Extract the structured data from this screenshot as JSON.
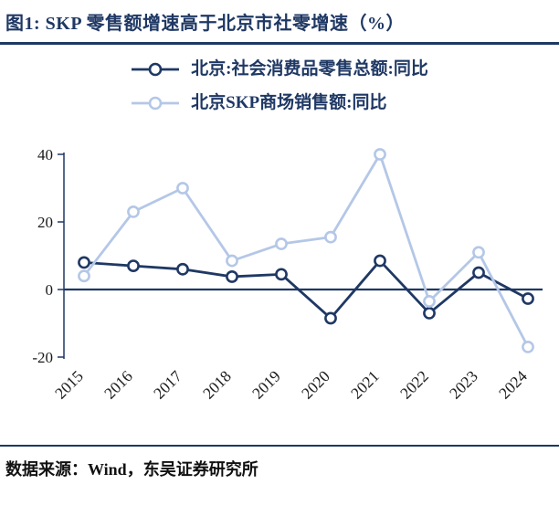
{
  "title": "图1:  SKP 零售额增速高于北京市社零增速（%）",
  "source": "数据来源：Wind，东吴证券研究所",
  "colors": {
    "accent": "#1F3864",
    "secondary": "#B4C7E7",
    "rule": "#1F3864"
  },
  "chart_data": {
    "type": "line",
    "title": "SKP 零售额增速高于北京市社零增速（%）",
    "categories": [
      "2015",
      "2016",
      "2017",
      "2018",
      "2019",
      "2020",
      "2021",
      "2022",
      "2023",
      "2024"
    ],
    "series": [
      {
        "name": "北京:社会消费品零售总额:同比",
        "color": "#1F3864",
        "marker": "open-circle",
        "values": [
          8,
          7,
          6,
          3.8,
          4.5,
          -8.5,
          8.5,
          -7,
          5,
          -2.7
        ]
      },
      {
        "name": "北京SKP商场销售额:同比",
        "color": "#B4C7E7",
        "marker": "open-circle",
        "values": [
          4,
          23,
          30,
          8.5,
          13.5,
          15.5,
          40,
          -3.5,
          11,
          -17
        ]
      }
    ],
    "xlabel": "",
    "ylabel": "",
    "ylim": [
      -20,
      40
    ],
    "yticks": [
      40,
      20,
      0,
      -20
    ],
    "grid": false,
    "legend_position": "top",
    "axis_color": "#1F3864",
    "zero_line": true
  }
}
